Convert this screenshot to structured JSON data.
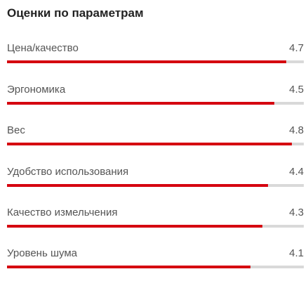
{
  "title": "Оценки по параметрам",
  "scale_max": 5,
  "colors": {
    "bar_fill": "#d5000f",
    "bar_track": "#d9d9d9"
  },
  "ratings": [
    {
      "label": "Цена/качество",
      "value": "4.7"
    },
    {
      "label": "Эргономика",
      "value": "4.5"
    },
    {
      "label": "Вес",
      "value": "4.8"
    },
    {
      "label": "Удобство использования",
      "value": "4.4"
    },
    {
      "label": "Качество измельчения",
      "value": "4.3"
    },
    {
      "label": "Уровень шума",
      "value": "4.1"
    }
  ]
}
